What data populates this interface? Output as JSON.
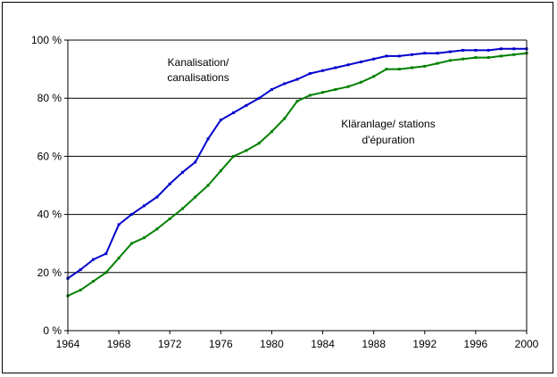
{
  "chart_data": {
    "type": "line",
    "title": "",
    "xlabel": "",
    "ylabel": "",
    "xlim": [
      1964,
      2000
    ],
    "ylim": [
      0,
      100
    ],
    "x_ticks": [
      1964,
      1968,
      1972,
      1976,
      1980,
      1984,
      1988,
      1992,
      1996,
      2000
    ],
    "y_ticks": [
      0,
      20,
      40,
      60,
      80,
      100
    ],
    "y_tick_labels": [
      "0 %",
      "20 %",
      "40 %",
      "60 %",
      "80 %",
      "100 %"
    ],
    "grid": "horizontal",
    "annotations": [
      {
        "lines": [
          "Kanalisation/",
          "canalisations"
        ],
        "series": "Kanalisation/ canalisations"
      },
      {
        "lines": [
          "Kläranlage/ stations",
          "d'épuration"
        ],
        "series": "Kläranlage/ stations d'épuration"
      }
    ],
    "series": [
      {
        "name": "Kanalisation/ canalisations",
        "color": "#0000CC",
        "points": [
          [
            1964,
            18
          ],
          [
            1965,
            21
          ],
          [
            1966,
            24.5
          ],
          [
            1967,
            26.5
          ],
          [
            1968,
            36.5
          ],
          [
            1969,
            40
          ],
          [
            1970,
            43
          ],
          [
            1971,
            46
          ],
          [
            1972,
            50.5
          ],
          [
            1973,
            54.5
          ],
          [
            1974,
            58
          ],
          [
            1975,
            66
          ],
          [
            1976,
            72.5
          ],
          [
            1977,
            75
          ],
          [
            1978,
            77.5
          ],
          [
            1979,
            80
          ],
          [
            1980,
            83
          ],
          [
            1981,
            85
          ],
          [
            1982,
            86.5
          ],
          [
            1983,
            88.5
          ],
          [
            1984,
            89.5
          ],
          [
            1985,
            90.5
          ],
          [
            1986,
            91.5
          ],
          [
            1987,
            92.5
          ],
          [
            1988,
            93.5
          ],
          [
            1989,
            94.5
          ],
          [
            1990,
            94.5
          ],
          [
            1991,
            95
          ],
          [
            1992,
            95.5
          ],
          [
            1993,
            95.5
          ],
          [
            1994,
            96
          ],
          [
            1995,
            96.5
          ],
          [
            1996,
            96.5
          ],
          [
            1997,
            96.5
          ],
          [
            1998,
            97
          ],
          [
            1999,
            97
          ],
          [
            2000,
            97
          ]
        ]
      },
      {
        "name": "Kläranlage/ stations d'épuration",
        "color": "#008000",
        "points": [
          [
            1964,
            12
          ],
          [
            1965,
            14
          ],
          [
            1966,
            17
          ],
          [
            1967,
            20
          ],
          [
            1968,
            25
          ],
          [
            1969,
            30
          ],
          [
            1970,
            32
          ],
          [
            1971,
            35
          ],
          [
            1972,
            38.5
          ],
          [
            1973,
            42
          ],
          [
            1974,
            46
          ],
          [
            1975,
            50
          ],
          [
            1976,
            55
          ],
          [
            1977,
            60
          ],
          [
            1978,
            62
          ],
          [
            1979,
            64.5
          ],
          [
            1980,
            68.5
          ],
          [
            1981,
            73
          ],
          [
            1982,
            79
          ],
          [
            1983,
            81
          ],
          [
            1984,
            82
          ],
          [
            1985,
            83
          ],
          [
            1986,
            84
          ],
          [
            1987,
            85.5
          ],
          [
            1988,
            87.5
          ],
          [
            1989,
            90
          ],
          [
            1990,
            90
          ],
          [
            1991,
            90.5
          ],
          [
            1992,
            91
          ],
          [
            1993,
            92
          ],
          [
            1994,
            93
          ],
          [
            1995,
            93.5
          ],
          [
            1996,
            94
          ],
          [
            1997,
            94
          ],
          [
            1998,
            94.5
          ],
          [
            1999,
            95
          ],
          [
            2000,
            95.5
          ]
        ]
      }
    ]
  }
}
